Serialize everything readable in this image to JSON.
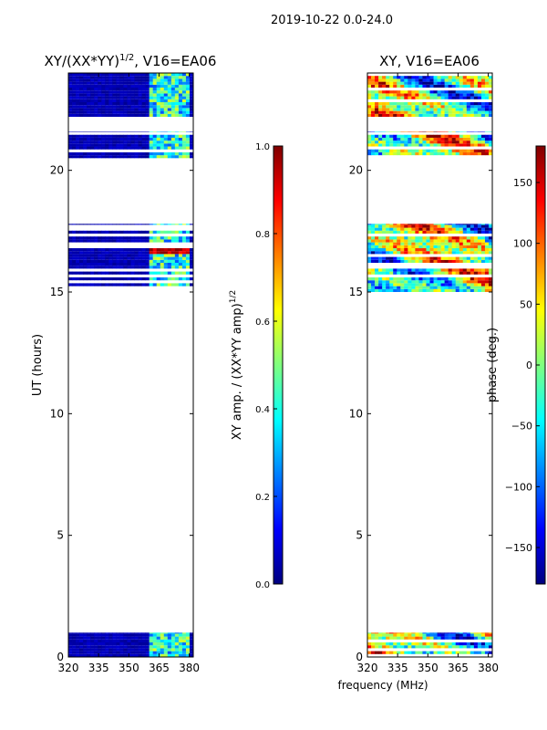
{
  "suptitle": "2019-10-22 0.0-24.0",
  "xlabel": "frequency (MHz)",
  "colors": {
    "jet": [
      "#00007f",
      "#0000ff",
      "#007fff",
      "#00ffff",
      "#7fff7f",
      "#ffff00",
      "#ff7f00",
      "#ff0000",
      "#7f0000"
    ],
    "axes": "#000000",
    "background": "#ffffff"
  },
  "chart_data": [
    {
      "type": "heatmap",
      "title": "XY/(XX*YY)^{1/2}, V16=EA06",
      "title_main": "XY/(XX*YY)",
      "title_sup": "1/2",
      "title_tail": ", V16=EA06",
      "xlabel": "",
      "ylabel": "UT (hours)",
      "xlim": [
        320,
        382
      ],
      "ylim": [
        0,
        24
      ],
      "xticks": [
        320,
        335,
        350,
        365,
        380
      ],
      "yticks": [
        0,
        5,
        10,
        15,
        20
      ],
      "rfi_band_mhz": [
        360,
        381
      ],
      "data_time_ranges_hours": [
        [
          0,
          1.0
        ],
        [
          15.0,
          17.8
        ],
        [
          20.5,
          21.6
        ],
        [
          22.2,
          24.0
        ]
      ],
      "colorbar": {
        "label": "XY amp. / (XX*YY amp)^{1/2}",
        "label_main": "XY amp. / (XX*YY amp)",
        "label_sup": "1/2",
        "range": [
          0.0,
          1.0
        ],
        "ticks": [
          "0.0",
          "0.2",
          "0.4",
          "0.6",
          "0.8",
          "1.0"
        ]
      }
    },
    {
      "type": "heatmap",
      "title": "XY, V16=EA06",
      "xlabel": "",
      "ylabel": "phase (deg.)",
      "xlim": [
        320,
        382
      ],
      "ylim": [
        0,
        24
      ],
      "xticks": [
        320,
        335,
        350,
        365,
        380
      ],
      "yticks": [
        0,
        5,
        10,
        15,
        20
      ],
      "data_time_ranges_hours": [
        [
          0,
          1.0
        ],
        [
          15.0,
          17.8
        ],
        [
          20.5,
          21.6
        ],
        [
          22.2,
          24.0
        ]
      ],
      "colorbar": {
        "label": "phase (deg.)",
        "range": [
          -180,
          180
        ],
        "ticks": [
          "−150",
          "−100",
          "−50",
          "0",
          "50",
          "100",
          "150"
        ]
      }
    }
  ]
}
